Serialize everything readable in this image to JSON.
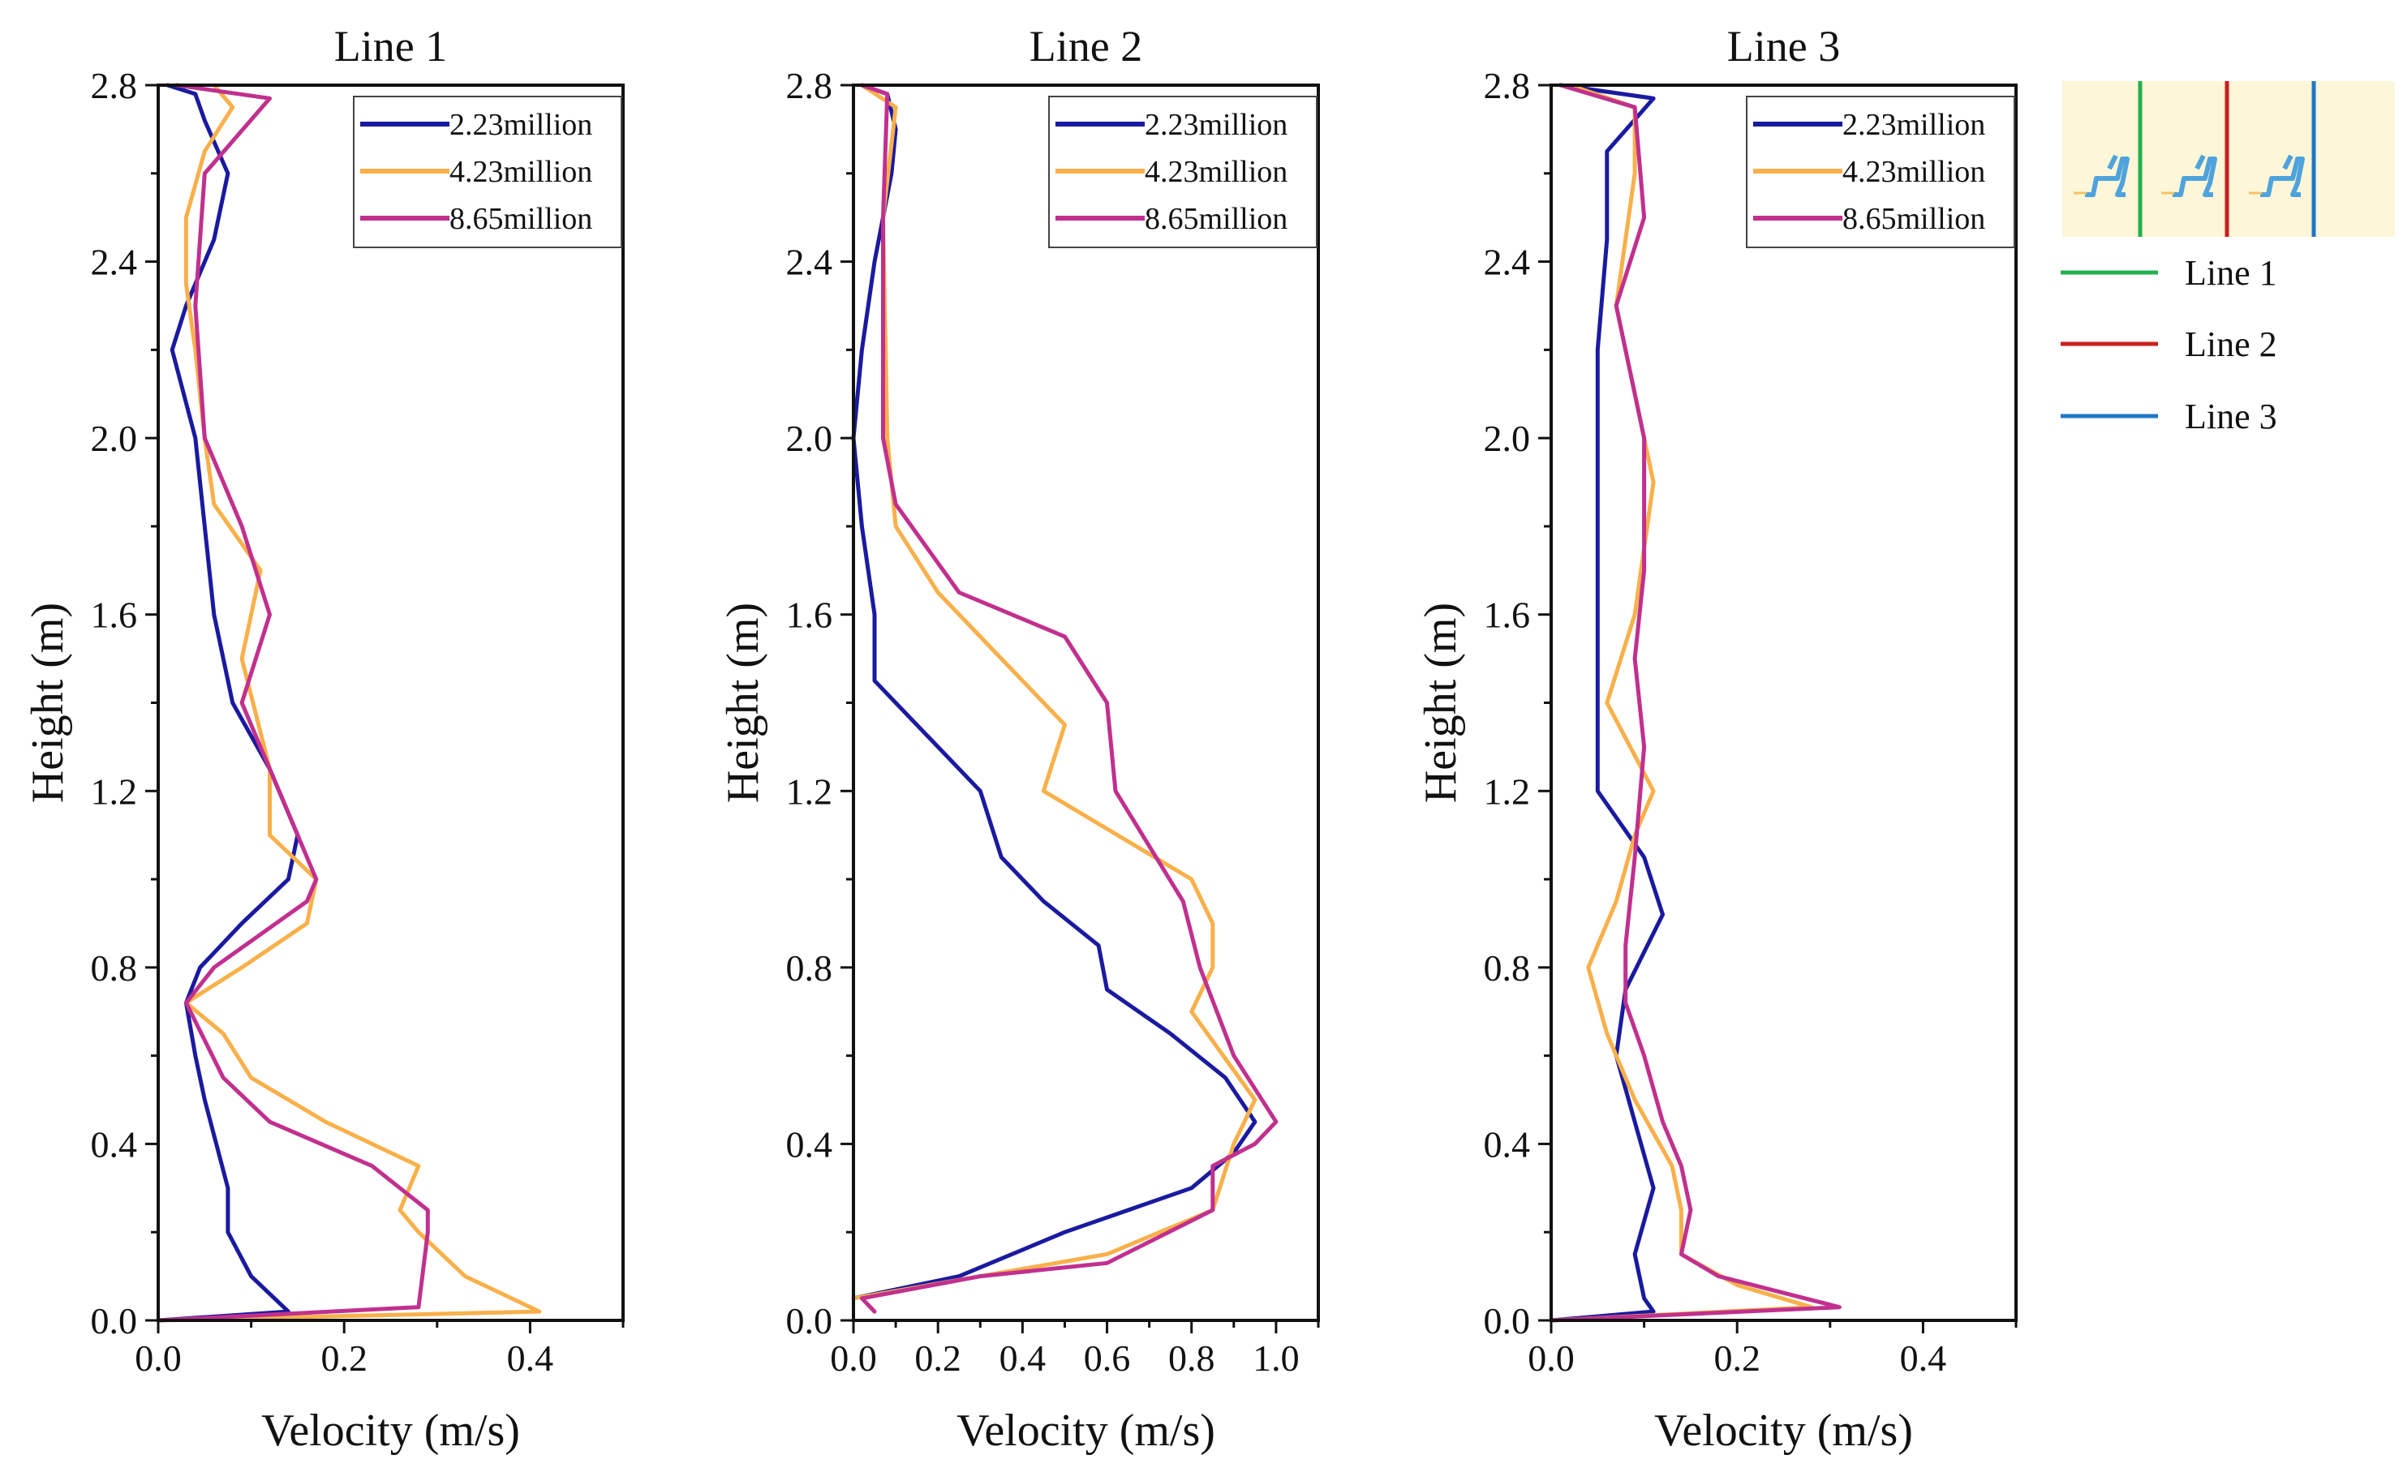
{
  "colors": {
    "series_2_23": "#1a1aa0",
    "series_4_23": "#f9b04a",
    "series_8_65": "#c1308e",
    "line1": "#22b14c",
    "line2": "#cc1f1f",
    "line3": "#1f78c8",
    "inset_bg": "#fdf6d8",
    "inset_fig": "#4fa3dd"
  },
  "chart_data": [
    {
      "type": "line",
      "title": "Line 1",
      "xlabel": "Velocity (m/s)",
      "ylabel": "Height (m)",
      "xlim": [
        0,
        0.5
      ],
      "ylim": [
        0,
        2.8
      ],
      "x_ticks": [
        0.0,
        0.2,
        0.4
      ],
      "x_tick_labels": [
        "0.0",
        "0.2",
        "0.4"
      ],
      "y_ticks": [
        0.0,
        0.4,
        0.8,
        1.2,
        1.6,
        2.0,
        2.4,
        2.8
      ],
      "y_tick_labels": [
        "0.0",
        "0.4",
        "0.8",
        "1.2",
        "1.6",
        "2.0",
        "2.4",
        "2.8"
      ],
      "legend_position": "top-right",
      "series": [
        {
          "name": "2.23million",
          "color": "#1a1aa0",
          "points": [
            [
              0,
              0
            ],
            [
              0.14,
              0.02
            ],
            [
              0.1,
              0.1
            ],
            [
              0.075,
              0.2
            ],
            [
              0.075,
              0.3
            ],
            [
              0.05,
              0.5
            ],
            [
              0.04,
              0.6
            ],
            [
              0.03,
              0.72
            ],
            [
              0.045,
              0.8
            ],
            [
              0.09,
              0.9
            ],
            [
              0.14,
              1.0
            ],
            [
              0.15,
              1.1
            ],
            [
              0.12,
              1.25
            ],
            [
              0.08,
              1.4
            ],
            [
              0.06,
              1.6
            ],
            [
              0.05,
              1.8
            ],
            [
              0.04,
              2.0
            ],
            [
              0.015,
              2.2
            ],
            [
              0.03,
              2.3
            ],
            [
              0.06,
              2.45
            ],
            [
              0.075,
              2.6
            ],
            [
              0.05,
              2.72
            ],
            [
              0.04,
              2.78
            ],
            [
              0.01,
              2.8
            ]
          ]
        },
        {
          "name": "4.23million",
          "color": "#f9b04a",
          "points": [
            [
              0,
              0
            ],
            [
              0.41,
              0.02
            ],
            [
              0.33,
              0.1
            ],
            [
              0.28,
              0.2
            ],
            [
              0.26,
              0.25
            ],
            [
              0.28,
              0.35
            ],
            [
              0.18,
              0.45
            ],
            [
              0.1,
              0.55
            ],
            [
              0.07,
              0.65
            ],
            [
              0.03,
              0.72
            ],
            [
              0.09,
              0.8
            ],
            [
              0.16,
              0.9
            ],
            [
              0.17,
              1.0
            ],
            [
              0.12,
              1.1
            ],
            [
              0.12,
              1.25
            ],
            [
              0.09,
              1.5
            ],
            [
              0.11,
              1.7
            ],
            [
              0.06,
              1.85
            ],
            [
              0.05,
              2.0
            ],
            [
              0.04,
              2.2
            ],
            [
              0.03,
              2.35
            ],
            [
              0.03,
              2.5
            ],
            [
              0.05,
              2.65
            ],
            [
              0.08,
              2.75
            ],
            [
              0.06,
              2.8
            ]
          ]
        },
        {
          "name": "8.65million",
          "color": "#c1308e",
          "points": [
            [
              0,
              0
            ],
            [
              0.28,
              0.03
            ],
            [
              0.29,
              0.2
            ],
            [
              0.29,
              0.25
            ],
            [
              0.23,
              0.35
            ],
            [
              0.12,
              0.45
            ],
            [
              0.07,
              0.55
            ],
            [
              0.03,
              0.72
            ],
            [
              0.06,
              0.8
            ],
            [
              0.16,
              0.95
            ],
            [
              0.17,
              1.0
            ],
            [
              0.13,
              1.2
            ],
            [
              0.09,
              1.4
            ],
            [
              0.12,
              1.6
            ],
            [
              0.09,
              1.8
            ],
            [
              0.05,
              2.0
            ],
            [
              0.04,
              2.3
            ],
            [
              0.05,
              2.6
            ],
            [
              0.12,
              2.77
            ],
            [
              0.02,
              2.8
            ]
          ]
        }
      ]
    },
    {
      "type": "line",
      "title": "Line 2",
      "xlabel": "Velocity (m/s)",
      "ylabel": "Height (m)",
      "xlim": [
        0,
        1.1
      ],
      "ylim": [
        0,
        2.8
      ],
      "x_ticks": [
        0.0,
        0.2,
        0.4,
        0.6,
        0.8,
        1.0
      ],
      "x_tick_labels": [
        "0.0",
        "0.2",
        "0.4",
        "0.6",
        "0.8",
        "1.0"
      ],
      "y_ticks": [
        0.0,
        0.4,
        0.8,
        1.2,
        1.6,
        2.0,
        2.4,
        2.8
      ],
      "y_tick_labels": [
        "0.0",
        "0.4",
        "0.8",
        "1.2",
        "1.6",
        "2.0",
        "2.4",
        "2.8"
      ],
      "legend_position": "top-right",
      "series": [
        {
          "name": "2.23million",
          "color": "#1a1aa0",
          "points": [
            [
              0,
              0.05
            ],
            [
              0.25,
              0.1
            ],
            [
              0.5,
              0.2
            ],
            [
              0.8,
              0.3
            ],
            [
              0.9,
              0.38
            ],
            [
              0.95,
              0.45
            ],
            [
              0.88,
              0.55
            ],
            [
              0.75,
              0.65
            ],
            [
              0.6,
              0.75
            ],
            [
              0.58,
              0.85
            ],
            [
              0.45,
              0.95
            ],
            [
              0.35,
              1.05
            ],
            [
              0.3,
              1.2
            ],
            [
              0.15,
              1.35
            ],
            [
              0.05,
              1.45
            ],
            [
              0.05,
              1.6
            ],
            [
              0.02,
              1.8
            ],
            [
              0.0,
              2.0
            ],
            [
              0.02,
              2.2
            ],
            [
              0.05,
              2.4
            ],
            [
              0.09,
              2.6
            ],
            [
              0.1,
              2.7
            ],
            [
              0.08,
              2.78
            ],
            [
              0.02,
              2.8
            ]
          ]
        },
        {
          "name": "4.23million",
          "color": "#f9b04a",
          "points": [
            [
              0,
              0.05
            ],
            [
              0.3,
              0.1
            ],
            [
              0.6,
              0.15
            ],
            [
              0.85,
              0.25
            ],
            [
              0.9,
              0.4
            ],
            [
              0.95,
              0.5
            ],
            [
              0.8,
              0.7
            ],
            [
              0.85,
              0.8
            ],
            [
              0.85,
              0.9
            ],
            [
              0.8,
              1.0
            ],
            [
              0.45,
              1.2
            ],
            [
              0.5,
              1.35
            ],
            [
              0.35,
              1.5
            ],
            [
              0.2,
              1.65
            ],
            [
              0.1,
              1.8
            ],
            [
              0.08,
              2.0
            ],
            [
              0.07,
              2.5
            ],
            [
              0.1,
              2.75
            ],
            [
              0.02,
              2.8
            ]
          ]
        },
        {
          "name": "8.65million",
          "color": "#c1308e",
          "points": [
            [
              0.05,
              0.02
            ],
            [
              0.02,
              0.05
            ],
            [
              0.3,
              0.1
            ],
            [
              0.6,
              0.13
            ],
            [
              0.85,
              0.25
            ],
            [
              0.85,
              0.35
            ],
            [
              0.95,
              0.4
            ],
            [
              1.0,
              0.45
            ],
            [
              0.9,
              0.6
            ],
            [
              0.82,
              0.8
            ],
            [
              0.78,
              0.95
            ],
            [
              0.62,
              1.2
            ],
            [
              0.6,
              1.4
            ],
            [
              0.5,
              1.55
            ],
            [
              0.25,
              1.65
            ],
            [
              0.1,
              1.85
            ],
            [
              0.07,
              2.0
            ],
            [
              0.07,
              2.5
            ],
            [
              0.08,
              2.78
            ],
            [
              0.02,
              2.8
            ]
          ]
        }
      ]
    },
    {
      "type": "line",
      "title": "Line 3",
      "xlabel": "Velocity (m/s)",
      "ylabel": "Height (m)",
      "xlim": [
        0,
        0.5
      ],
      "ylim": [
        0,
        2.8
      ],
      "x_ticks": [
        0.0,
        0.2,
        0.4
      ],
      "x_tick_labels": [
        "0.0",
        "0.2",
        "0.4"
      ],
      "y_ticks": [
        0.0,
        0.4,
        0.8,
        1.2,
        1.6,
        2.0,
        2.4,
        2.8
      ],
      "y_tick_labels": [
        "0.0",
        "0.4",
        "0.8",
        "1.2",
        "1.6",
        "2.0",
        "2.4",
        "2.8"
      ],
      "legend_position": "top-right",
      "series": [
        {
          "name": "2.23million",
          "color": "#1a1aa0",
          "points": [
            [
              0,
              0
            ],
            [
              0.11,
              0.02
            ],
            [
              0.1,
              0.05
            ],
            [
              0.09,
              0.15
            ],
            [
              0.11,
              0.3
            ],
            [
              0.09,
              0.45
            ],
            [
              0.07,
              0.6
            ],
            [
              0.08,
              0.75
            ],
            [
              0.12,
              0.92
            ],
            [
              0.1,
              1.05
            ],
            [
              0.05,
              1.2
            ],
            [
              0.05,
              1.5
            ],
            [
              0.05,
              1.8
            ],
            [
              0.05,
              2.2
            ],
            [
              0.06,
              2.45
            ],
            [
              0.06,
              2.65
            ],
            [
              0.11,
              2.77
            ],
            [
              0.01,
              2.8
            ]
          ]
        },
        {
          "name": "4.23million",
          "color": "#f9b04a",
          "points": [
            [
              0,
              0
            ],
            [
              0.28,
              0.03
            ],
            [
              0.2,
              0.08
            ],
            [
              0.14,
              0.15
            ],
            [
              0.14,
              0.25
            ],
            [
              0.13,
              0.35
            ],
            [
              0.09,
              0.5
            ],
            [
              0.06,
              0.65
            ],
            [
              0.04,
              0.8
            ],
            [
              0.07,
              0.95
            ],
            [
              0.09,
              1.1
            ],
            [
              0.11,
              1.2
            ],
            [
              0.06,
              1.4
            ],
            [
              0.09,
              1.6
            ],
            [
              0.11,
              1.9
            ],
            [
              0.09,
              2.1
            ],
            [
              0.07,
              2.3
            ],
            [
              0.09,
              2.6
            ],
            [
              0.09,
              2.75
            ],
            [
              0.02,
              2.8
            ]
          ]
        },
        {
          "name": "8.65million",
          "color": "#c1308e",
          "points": [
            [
              0,
              0
            ],
            [
              0.31,
              0.03
            ],
            [
              0.18,
              0.1
            ],
            [
              0.14,
              0.15
            ],
            [
              0.15,
              0.25
            ],
            [
              0.14,
              0.35
            ],
            [
              0.12,
              0.45
            ],
            [
              0.1,
              0.6
            ],
            [
              0.08,
              0.72
            ],
            [
              0.08,
              0.85
            ],
            [
              0.09,
              1.05
            ],
            [
              0.1,
              1.3
            ],
            [
              0.09,
              1.5
            ],
            [
              0.1,
              1.7
            ],
            [
              0.1,
              2.0
            ],
            [
              0.07,
              2.3
            ],
            [
              0.1,
              2.5
            ],
            [
              0.09,
              2.75
            ],
            [
              0.01,
              2.8
            ]
          ]
        }
      ]
    }
  ],
  "key": {
    "items": [
      {
        "label": "Line 1",
        "color": "#22b14c"
      },
      {
        "label": "Line 2",
        "color": "#cc1f1f"
      },
      {
        "label": "Line 3",
        "color": "#1f78c8"
      }
    ]
  }
}
